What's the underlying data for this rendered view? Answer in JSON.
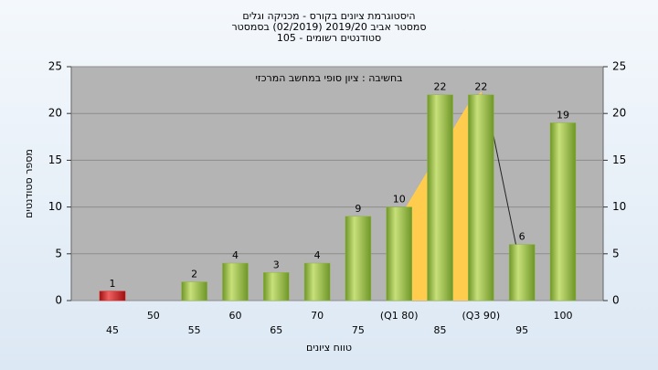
{
  "chart_data": {
    "type": "bar",
    "title": "היסטוגרמת ציונים בקורס - מכניקה וגלים",
    "subtitle": "סמסטר אביב 2019/20 (02/2019) בסמסטר",
    "subtitle2": "סטודנטים רשומים - 105",
    "annotation": "בחשיבה : ציון סופי במחשב המרכזי",
    "ylabel": "מספר סטודנטים",
    "xlabel": "טווח ציונים",
    "categories": [
      "45",
      "50",
      "55",
      "60",
      "65",
      "70",
      "75",
      "(Q1 80)",
      "85",
      "(Q3 90)",
      "95",
      "100"
    ],
    "values": [
      1,
      0,
      2,
      4,
      3,
      4,
      9,
      10,
      22,
      22,
      6,
      19
    ],
    "colors": [
      "#d42020",
      "#8fb640",
      "#8fb640",
      "#8fb640",
      "#8fb640",
      "#8fb640",
      "#8fb640",
      "#8fb640",
      "#8fb640",
      "#8fb640",
      "#8fb640",
      "#8fb640"
    ],
    "ylim": [
      0,
      25
    ],
    "yticks": [
      0,
      5,
      10,
      15,
      20,
      25
    ],
    "y2lim": [
      0,
      25
    ],
    "y2ticks": [
      0,
      5,
      10,
      15,
      20,
      25
    ],
    "grid": true
  }
}
